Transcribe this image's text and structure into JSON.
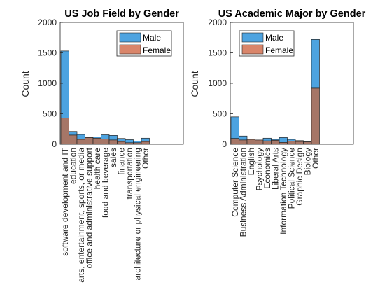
{
  "colors": {
    "male": "#4DA3E0",
    "female": "#D9856A",
    "overlap": "#A67667",
    "axis": "#262626"
  },
  "chart_data": [
    {
      "type": "bar",
      "title": "US Job Field by Gender",
      "ylabel": "Count",
      "ylim": [
        0,
        2000
      ],
      "yticks": [
        0,
        500,
        1000,
        1500,
        2000
      ],
      "legend": {
        "entries": [
          "Male",
          "Female"
        ],
        "position": "top-right"
      },
      "categories": [
        "software development and IT",
        "education",
        "arts, entertainment, sports, or media",
        "office and administrative support",
        "health care",
        "food and beverage",
        "sales",
        "finance",
        "transportation",
        "architecture or physical engineering",
        "Other"
      ],
      "series": [
        {
          "name": "Male",
          "values": [
            1530,
            210,
            160,
            115,
            120,
            155,
            145,
            95,
            75,
            50,
            100
          ]
        },
        {
          "name": "Female",
          "values": [
            430,
            150,
            80,
            110,
            100,
            85,
            70,
            45,
            25,
            25,
            45
          ]
        }
      ]
    },
    {
      "type": "bar",
      "title": "US Academic Major by Gender",
      "ylabel": "Count",
      "ylim": [
        0,
        2000
      ],
      "yticks": [
        0,
        500,
        1000,
        1500,
        2000
      ],
      "legend": {
        "entries": [
          "Male",
          "Female"
        ],
        "position": "top-right"
      },
      "categories": [
        "Computer Science",
        "Business Administration",
        "English",
        "Psychology",
        "Economics",
        "Liberal Arts",
        "Information Technology",
        "Political Science",
        "Graphic Design",
        "Biology",
        "Other"
      ],
      "series": [
        {
          "name": "Male",
          "values": [
            450,
            135,
            80,
            70,
            100,
            80,
            110,
            80,
            60,
            50,
            1720
          ]
        },
        {
          "name": "Female",
          "values": [
            95,
            70,
            80,
            70,
            55,
            65,
            30,
            50,
            45,
            40,
            920
          ]
        }
      ]
    }
  ]
}
